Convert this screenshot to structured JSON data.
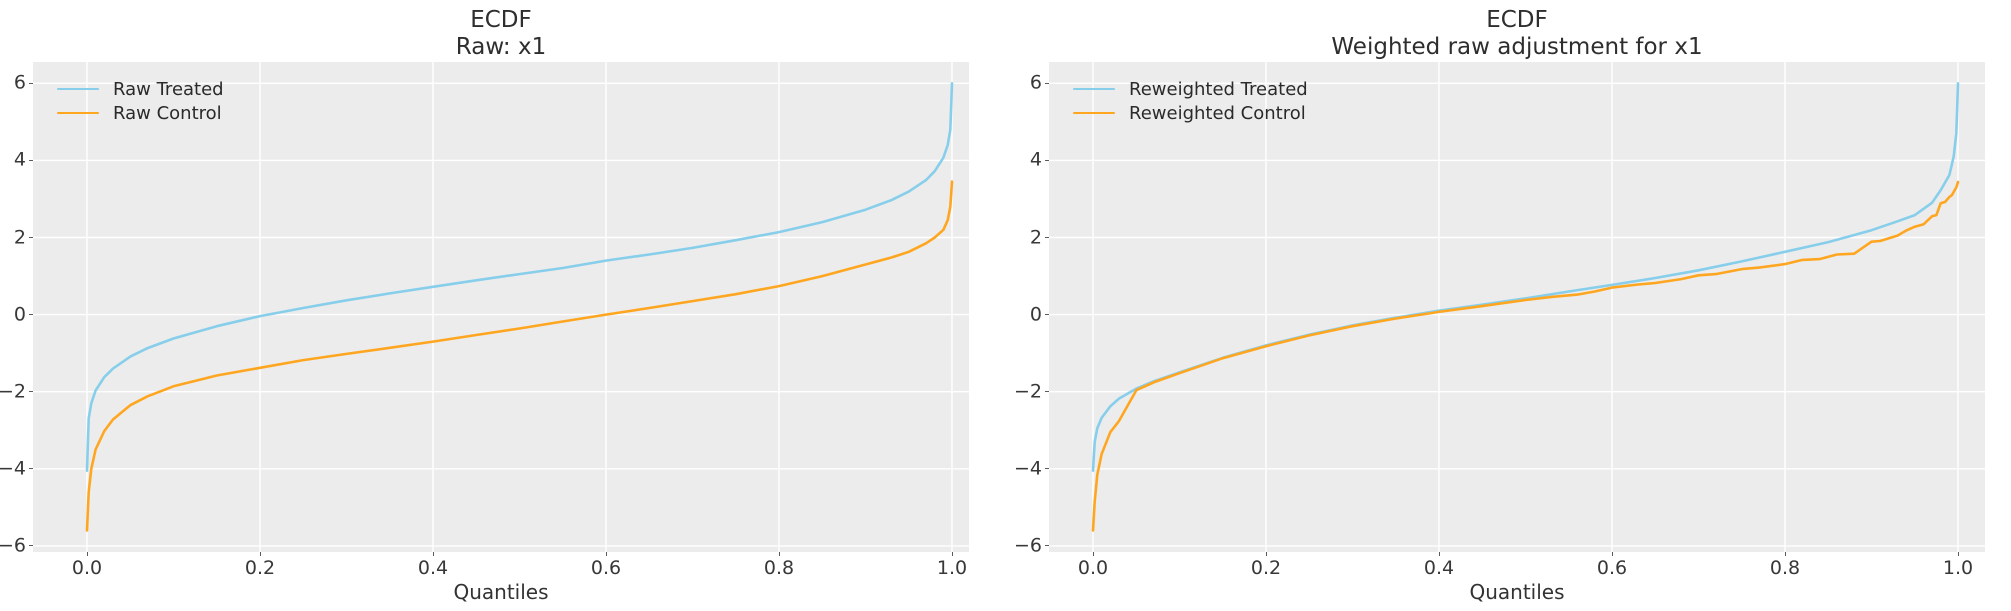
{
  "chart_data": [
    {
      "type": "line",
      "title": "ECDF",
      "subtitle": "Raw: x1",
      "xlabel": "Quantiles",
      "ylabel": "",
      "xlim": [
        -0.06,
        1.02
      ],
      "ylim": [
        -6.2,
        6.55
      ],
      "grid": true,
      "legend_position": "upper left",
      "xticks": [
        0.0,
        0.2,
        0.4,
        0.6,
        0.8,
        1.0
      ],
      "xtick_labels": [
        "0.0",
        "0.2",
        "0.4",
        "0.6",
        "0.8",
        "1.0"
      ],
      "yticks": [
        6,
        4,
        2,
        0,
        -2,
        -4,
        -6
      ],
      "ytick_labels": [
        "6",
        "4",
        "2",
        "0",
        "−2",
        "−4",
        "−6"
      ],
      "series": [
        {
          "name": "Raw Treated",
          "color": "#87CEEB",
          "q": [
            0,
            0.002,
            0.005,
            0.01,
            0.02,
            0.03,
            0.05,
            0.07,
            0.1,
            0.15,
            0.2,
            0.25,
            0.3,
            0.35,
            0.4,
            0.45,
            0.5,
            0.55,
            0.6,
            0.65,
            0.7,
            0.75,
            0.8,
            0.85,
            0.9,
            0.93,
            0.95,
            0.97,
            0.98,
            0.99,
            0.995,
            0.998,
            1.0
          ],
          "v": [
            -4.05,
            -2.69,
            -2.3,
            -1.97,
            -1.62,
            -1.4,
            -1.09,
            -0.87,
            -0.62,
            -0.3,
            -0.04,
            0.17,
            0.37,
            0.55,
            0.72,
            0.89,
            1.05,
            1.21,
            1.4,
            1.56,
            1.73,
            1.93,
            2.14,
            2.4,
            2.72,
            2.97,
            3.19,
            3.49,
            3.72,
            4.07,
            4.4,
            4.79,
            6.0
          ]
        },
        {
          "name": "Raw Control",
          "color": "#FFA621",
          "q": [
            0,
            0.002,
            0.005,
            0.01,
            0.02,
            0.03,
            0.05,
            0.07,
            0.1,
            0.15,
            0.2,
            0.25,
            0.3,
            0.35,
            0.4,
            0.45,
            0.5,
            0.55,
            0.6,
            0.65,
            0.7,
            0.75,
            0.8,
            0.85,
            0.9,
            0.93,
            0.95,
            0.97,
            0.98,
            0.99,
            0.995,
            0.998,
            1.0
          ],
          "v": [
            -5.6,
            -4.6,
            -4.0,
            -3.5,
            -3.02,
            -2.72,
            -2.35,
            -2.12,
            -1.86,
            -1.58,
            -1.38,
            -1.18,
            -1.02,
            -0.86,
            -0.7,
            -0.53,
            -0.36,
            -0.18,
            0.0,
            0.17,
            0.35,
            0.53,
            0.74,
            1.0,
            1.3,
            1.48,
            1.63,
            1.85,
            2.0,
            2.2,
            2.45,
            2.8,
            3.45
          ]
        }
      ]
    },
    {
      "type": "line",
      "title": "ECDF",
      "subtitle": "Weighted raw adjustment for x1",
      "xlabel": "Quantiles",
      "ylabel": "",
      "xlim": [
        -0.05,
        1.03
      ],
      "ylim": [
        -6.2,
        6.55
      ],
      "grid": true,
      "legend_position": "upper left",
      "xticks": [
        0.0,
        0.2,
        0.4,
        0.6,
        0.8,
        1.0
      ],
      "xtick_labels": [
        "0.0",
        "0.2",
        "0.4",
        "0.6",
        "0.8",
        "1.0"
      ],
      "yticks": [
        6,
        4,
        2,
        0,
        -2,
        -4,
        -6
      ],
      "ytick_labels": [
        "6",
        "4",
        "2",
        "0",
        "−2",
        "−4",
        "−6"
      ],
      "series": [
        {
          "name": "Reweighted Treated",
          "color": "#87CEEB",
          "q": [
            0,
            0.002,
            0.005,
            0.01,
            0.02,
            0.03,
            0.05,
            0.07,
            0.1,
            0.15,
            0.2,
            0.25,
            0.3,
            0.35,
            0.4,
            0.45,
            0.5,
            0.55,
            0.6,
            0.65,
            0.7,
            0.75,
            0.8,
            0.85,
            0.9,
            0.93,
            0.95,
            0.97,
            0.98,
            0.99,
            0.995,
            0.998,
            1.0
          ],
          "v": [
            -4.05,
            -3.3,
            -2.95,
            -2.68,
            -2.38,
            -2.18,
            -1.92,
            -1.73,
            -1.5,
            -1.12,
            -0.8,
            -0.52,
            -0.28,
            -0.08,
            0.1,
            0.26,
            0.42,
            0.6,
            0.77,
            0.95,
            1.15,
            1.38,
            1.63,
            1.88,
            2.19,
            2.42,
            2.58,
            2.9,
            3.23,
            3.62,
            4.1,
            4.7,
            6.0
          ]
        },
        {
          "name": "Reweighted Control",
          "color": "#FFA621",
          "q": [
            0,
            0.002,
            0.005,
            0.01,
            0.02,
            0.03,
            0.05,
            0.07,
            0.1,
            0.15,
            0.2,
            0.25,
            0.3,
            0.35,
            0.4,
            0.45,
            0.5,
            0.53,
            0.56,
            0.58,
            0.6,
            0.63,
            0.65,
            0.68,
            0.7,
            0.72,
            0.75,
            0.77,
            0.8,
            0.82,
            0.84,
            0.86,
            0.88,
            0.9,
            0.91,
            0.93,
            0.94,
            0.95,
            0.96,
            0.97,
            0.975,
            0.98,
            0.985,
            0.99,
            0.993,
            0.996,
            0.998,
            1.0
          ],
          "v": [
            -5.6,
            -4.85,
            -4.15,
            -3.62,
            -3.05,
            -2.76,
            -1.96,
            -1.76,
            -1.52,
            -1.13,
            -0.82,
            -0.54,
            -0.3,
            -0.1,
            0.07,
            0.22,
            0.38,
            0.46,
            0.52,
            0.6,
            0.7,
            0.78,
            0.82,
            0.92,
            1.02,
            1.05,
            1.18,
            1.22,
            1.31,
            1.42,
            1.44,
            1.56,
            1.58,
            1.89,
            1.91,
            2.05,
            2.18,
            2.28,
            2.34,
            2.55,
            2.58,
            2.89,
            2.92,
            3.05,
            3.1,
            3.22,
            3.3,
            3.44
          ]
        }
      ]
    }
  ]
}
